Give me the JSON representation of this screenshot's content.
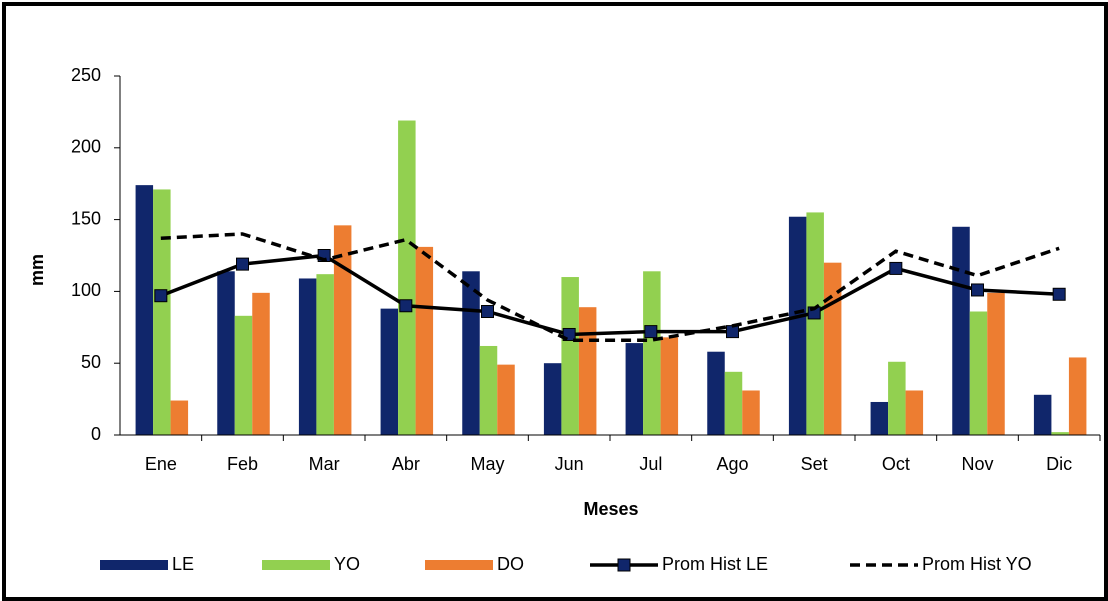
{
  "chart_data": {
    "type": "bar",
    "x_label": "Meses",
    "y_label": "mm",
    "categories": [
      "Ene",
      "Feb",
      "Mar",
      "Abr",
      "May",
      "Jun",
      "Jul",
      "Ago",
      "Set",
      "Oct",
      "Nov",
      "Dic"
    ],
    "ylim": [
      0,
      250
    ],
    "yticks": [
      0,
      50,
      100,
      150,
      200,
      250
    ],
    "grid": false,
    "legend": "bottom",
    "series": [
      {
        "name": "LE",
        "type": "bar",
        "color": "#10266b",
        "values": [
          174,
          114,
          109,
          88,
          114,
          50,
          64,
          58,
          152,
          23,
          145,
          28
        ]
      },
      {
        "name": "YO",
        "type": "bar",
        "color": "#92d050",
        "values": [
          171,
          83,
          112,
          219,
          62,
          110,
          114,
          44,
          155,
          51,
          86,
          2
        ]
      },
      {
        "name": "DO",
        "type": "bar",
        "color": "#ed7d31",
        "values": [
          24,
          99,
          146,
          131,
          49,
          89,
          68,
          31,
          120,
          31,
          99,
          54
        ]
      },
      {
        "name": "Prom Hist LE",
        "type": "line",
        "color": "#000000",
        "line_style": "solid",
        "marker": "square",
        "marker_color": "#10266b",
        "values": [
          97,
          119,
          125,
          90,
          86,
          70,
          72,
          72,
          85,
          116,
          101,
          98
        ]
      },
      {
        "name": "Prom Hist YO",
        "type": "line",
        "color": "#000000",
        "line_style": "dashed",
        "values": [
          137,
          140,
          122,
          136,
          94,
          66,
          66,
          76,
          88,
          128,
          111,
          130
        ]
      }
    ]
  }
}
